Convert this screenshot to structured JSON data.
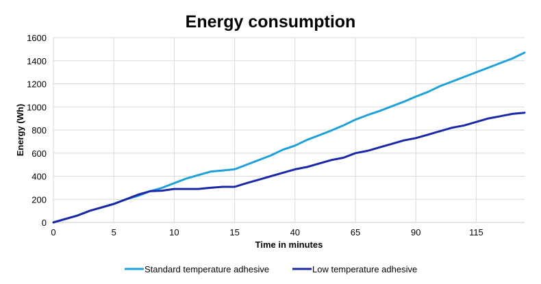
{
  "chart_data": {
    "type": "line",
    "title": "Energy consumption",
    "xlabel": "Time in minutes",
    "ylabel": "Energy (Wh)",
    "ylim": [
      0,
      1600
    ],
    "yticks": [
      0,
      200,
      400,
      600,
      800,
      1000,
      1200,
      1400,
      1600
    ],
    "grid": true,
    "legend_position": "bottom",
    "x": [
      0,
      1,
      2,
      3,
      4,
      5,
      6,
      7,
      8,
      9,
      10,
      11,
      12,
      13,
      14,
      15,
      20,
      25,
      30,
      35,
      40,
      45,
      50,
      55,
      60,
      65,
      70,
      75,
      80,
      85,
      90,
      95,
      100,
      105,
      110,
      115,
      120,
      125,
      130,
      135
    ],
    "xtick_labels": [
      "0",
      "5",
      "10",
      "15",
      "40",
      "65",
      "90",
      "115"
    ],
    "series": [
      {
        "name": "Standard temperature adhesive",
        "color": "#1ea0d8",
        "values": [
          0,
          30,
          60,
          100,
          130,
          160,
          200,
          230,
          270,
          300,
          340,
          380,
          410,
          440,
          450,
          460,
          500,
          540,
          580,
          630,
          665,
          715,
          755,
          795,
          840,
          890,
          930,
          965,
          1005,
          1045,
          1090,
          1130,
          1180,
          1220,
          1260,
          1300,
          1340,
          1380,
          1420,
          1470
        ]
      },
      {
        "name": "Low temperature adhesive",
        "color": "#1a28a8",
        "values": [
          0,
          30,
          60,
          100,
          130,
          160,
          200,
          240,
          270,
          275,
          290,
          290,
          290,
          300,
          308,
          308,
          340,
          370,
          400,
          430,
          460,
          480,
          510,
          540,
          560,
          600,
          620,
          650,
          680,
          710,
          730,
          760,
          790,
          820,
          840,
          870,
          900,
          920,
          940,
          950
        ]
      }
    ]
  }
}
